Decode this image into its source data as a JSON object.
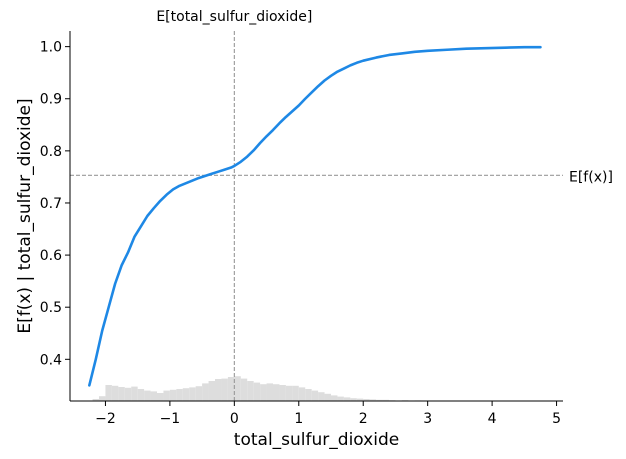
{
  "chart_data": {
    "type": "line",
    "title": "",
    "xlabel": "total_sulfur_dioxide",
    "ylabel": "E[f(x) | total_sulfur_dioxide]",
    "xlim": [
      -2.55,
      5.1
    ],
    "ylim": [
      0.32,
      1.03
    ],
    "x_ticks": [
      -2,
      -1,
      0,
      1,
      2,
      3,
      4,
      5
    ],
    "x_tick_labels": [
      "−2",
      "−1",
      "0",
      "1",
      "2",
      "3",
      "4",
      "5"
    ],
    "y_ticks": [
      0.4,
      0.5,
      0.6,
      0.7,
      0.8,
      0.9,
      1.0
    ],
    "y_tick_labels": [
      "0.4",
      "0.5",
      "0.6",
      "0.7",
      "0.8",
      "0.9",
      "1.0"
    ],
    "grid": false,
    "series": [
      {
        "color": "#1e88e5",
        "x": [
          -2.25,
          -2.15,
          -2.05,
          -1.95,
          -1.85,
          -1.75,
          -1.65,
          -1.55,
          -1.45,
          -1.35,
          -1.25,
          -1.15,
          -1.05,
          -0.95,
          -0.85,
          -0.75,
          -0.65,
          -0.55,
          -0.45,
          -0.35,
          -0.25,
          -0.15,
          -0.05,
          0.0,
          0.1,
          0.2,
          0.3,
          0.4,
          0.5,
          0.6,
          0.7,
          0.8,
          0.9,
          1.0,
          1.1,
          1.2,
          1.3,
          1.4,
          1.5,
          1.6,
          1.7,
          1.8,
          1.9,
          2.0,
          2.2,
          2.4,
          2.6,
          2.8,
          3.0,
          3.3,
          3.6,
          3.9,
          4.2,
          4.5,
          4.75
        ],
        "values": [
          0.35,
          0.4,
          0.455,
          0.5,
          0.545,
          0.58,
          0.605,
          0.635,
          0.655,
          0.675,
          0.69,
          0.704,
          0.716,
          0.726,
          0.733,
          0.738,
          0.743,
          0.748,
          0.752,
          0.756,
          0.76,
          0.764,
          0.768,
          0.771,
          0.779,
          0.789,
          0.801,
          0.815,
          0.828,
          0.84,
          0.853,
          0.865,
          0.876,
          0.887,
          0.9,
          0.912,
          0.924,
          0.935,
          0.944,
          0.952,
          0.958,
          0.964,
          0.969,
          0.973,
          0.979,
          0.984,
          0.987,
          0.99,
          0.992,
          0.994,
          0.996,
          0.997,
          0.998,
          0.999,
          0.999
        ]
      }
    ],
    "reference_lines": [
      {
        "orientation": "vertical",
        "x": 0.0,
        "label": "E[total_sulfur_dioxide]"
      },
      {
        "orientation": "horizontal",
        "y": 0.753,
        "label": "E[f(x)]"
      }
    ],
    "histogram": {
      "color": "#dddddd",
      "bin_width": 0.1,
      "bin_starts": [
        -2.2,
        -2.1,
        -2.0,
        -1.9,
        -1.8,
        -1.7,
        -1.6,
        -1.5,
        -1.4,
        -1.3,
        -1.2,
        -1.1,
        -1.0,
        -0.9,
        -0.8,
        -0.7,
        -0.6,
        -0.5,
        -0.4,
        -0.3,
        -0.2,
        -0.1,
        0.0,
        0.1,
        0.2,
        0.3,
        0.4,
        0.5,
        0.6,
        0.7,
        0.8,
        0.9,
        1.0,
        1.1,
        1.2,
        1.3,
        1.4,
        1.5,
        1.6,
        1.7,
        1.8,
        1.9,
        2.0,
        2.1,
        2.2,
        2.3,
        2.4,
        2.6,
        2.8,
        3.0,
        3.2,
        3.5,
        3.8,
        4.2,
        4.6
      ],
      "relative_heights": [
        0.05,
        0.12,
        0.4,
        0.38,
        0.35,
        0.33,
        0.36,
        0.3,
        0.26,
        0.24,
        0.2,
        0.26,
        0.28,
        0.3,
        0.32,
        0.34,
        0.37,
        0.44,
        0.5,
        0.55,
        0.56,
        0.6,
        0.62,
        0.56,
        0.5,
        0.46,
        0.42,
        0.44,
        0.42,
        0.4,
        0.38,
        0.38,
        0.34,
        0.3,
        0.26,
        0.22,
        0.18,
        0.14,
        0.11,
        0.09,
        0.07,
        0.06,
        0.05,
        0.04,
        0.03,
        0.03,
        0.02,
        0.02,
        0.015,
        0.012,
        0.01,
        0.008,
        0.006,
        0.005,
        0.004
      ]
    }
  }
}
